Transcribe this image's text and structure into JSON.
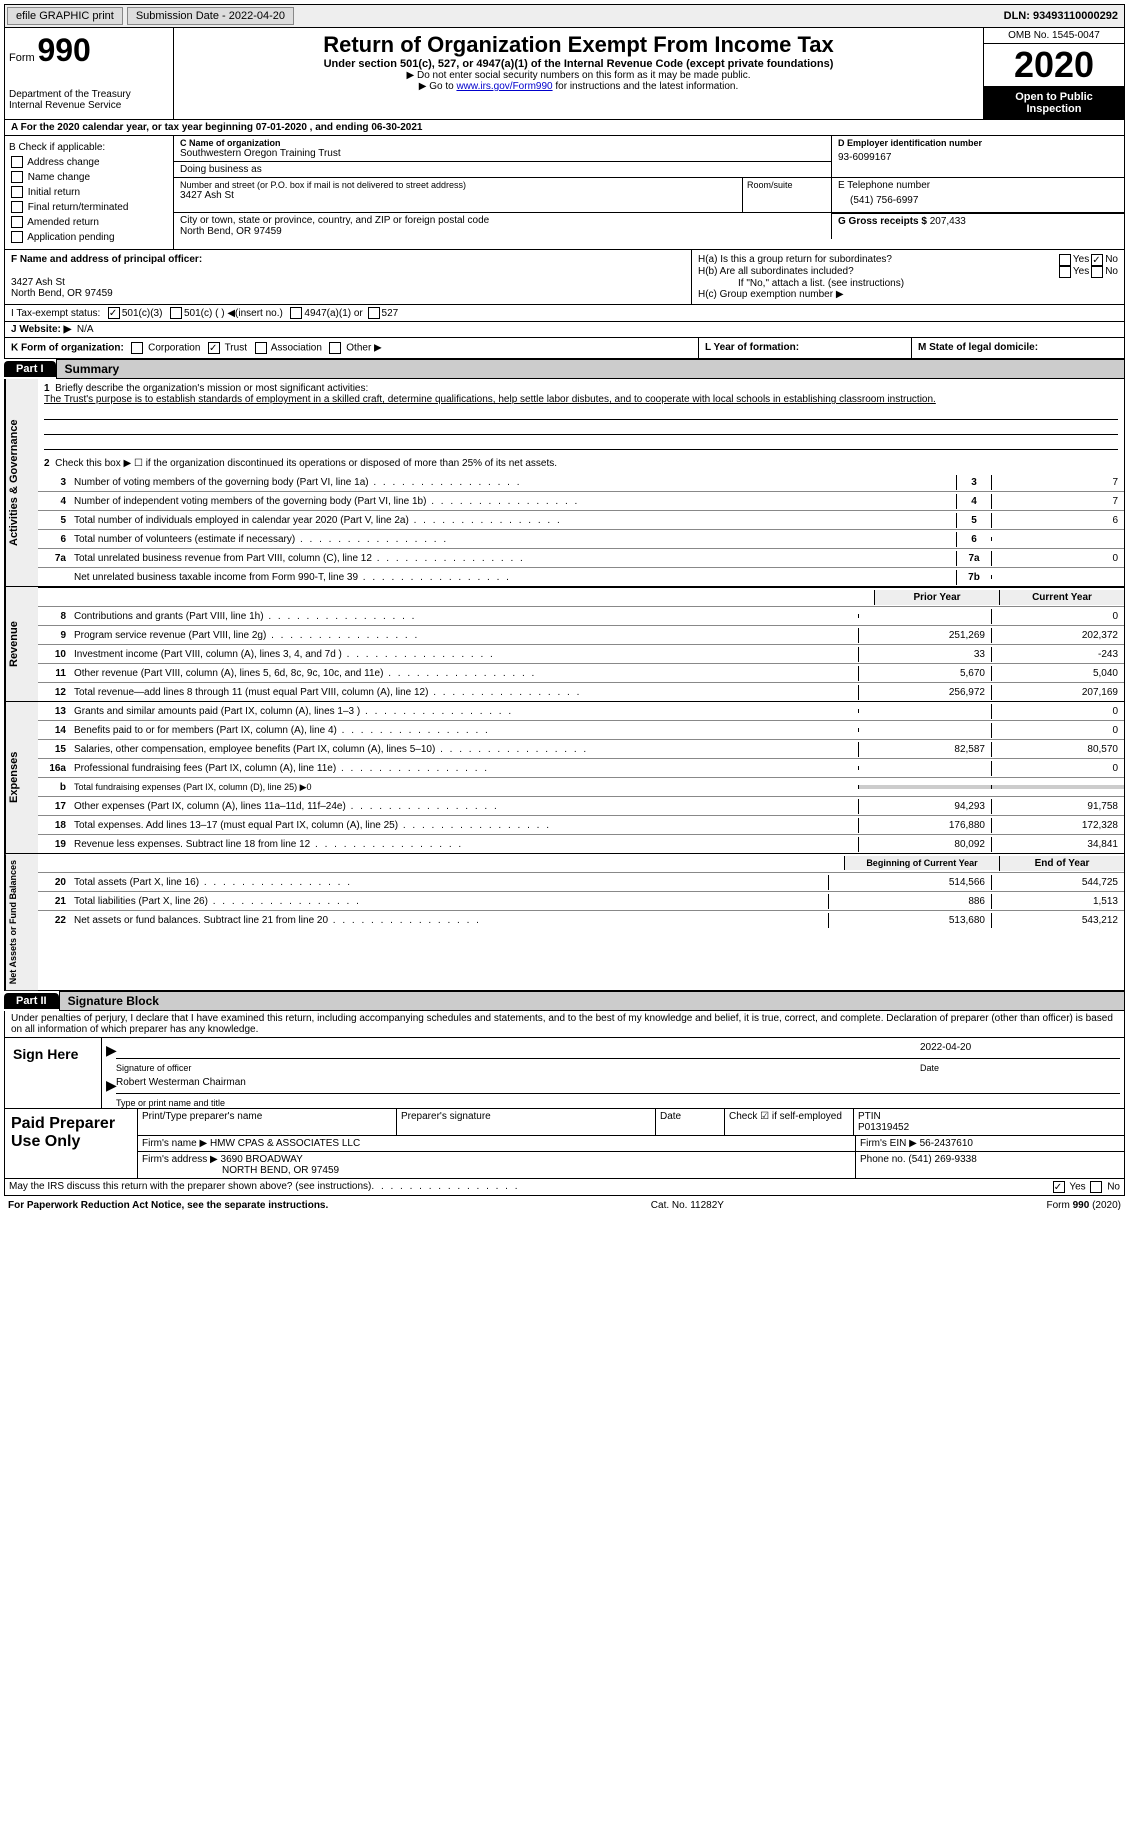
{
  "top_bar": {
    "efile": "efile GRAPHIC print",
    "submission": "Submission Date - 2022-04-20",
    "dln": "DLN: 93493110000292"
  },
  "header": {
    "form_word": "Form",
    "form_num": "990",
    "title": "Return of Organization Exempt From Income Tax",
    "sub": "Under section 501(c), 527, or 4947(a)(1) of the Internal Revenue Code (except private foundations)",
    "note1": "▶ Do not enter social security numbers on this form as it may be made public.",
    "note2_prefix": "▶ Go to ",
    "note2_link": "www.irs.gov/Form990",
    "note2_suffix": " for instructions and the latest information.",
    "dept1": "Department of the Treasury",
    "dept2": "Internal Revenue Service",
    "omb": "OMB No. 1545-0047",
    "year": "2020",
    "inspection": "Open to Public Inspection"
  },
  "row_a": "A For the 2020 calendar year, or tax year beginning 07-01-2020     , and ending 06-30-2021",
  "box_b": {
    "label": "B Check if applicable:",
    "items": [
      "Address change",
      "Name change",
      "Initial return",
      "Final return/terminated",
      "Amended return",
      "Application pending"
    ]
  },
  "box_c": {
    "name_label": "C Name of organization",
    "name": "Southwestern Oregon Training Trust",
    "dba_label": "Doing business as",
    "addr_label": "Number and street (or P.O. box if mail is not delivered to street address)",
    "addr": "3427 Ash St",
    "room_label": "Room/suite",
    "city_label": "City or town, state or province, country, and ZIP or foreign postal code",
    "city": "North Bend, OR  97459"
  },
  "box_d": {
    "ein_label": "D Employer identification number",
    "ein": "93-6099167",
    "phone_label": "E Telephone number",
    "phone": "(541) 756-6997",
    "gross_label": "G Gross receipts $",
    "gross": "207,433"
  },
  "box_f": {
    "label": "F Name and address of principal officer:",
    "addr1": "3427 Ash St",
    "addr2": "North Bend, OR  97459"
  },
  "box_h": {
    "ha": "H(a)  Is this a group return for subordinates?",
    "hb": "H(b)  Are all subordinates included?",
    "hb_note": "If \"No,\" attach a list. (see instructions)",
    "hc": "H(c)  Group exemption number ▶"
  },
  "box_i": {
    "label": "I  Tax-exempt status:",
    "opt1": "501(c)(3)",
    "opt2": "501(c) (   ) ◀(insert no.)",
    "opt3": "4947(a)(1) or",
    "opt4": "527"
  },
  "box_j": {
    "label": "J  Website: ▶",
    "val": "N/A"
  },
  "box_k": "K Form of organization:",
  "box_k_opts": [
    "Corporation",
    "Trust",
    "Association",
    "Other ▶"
  ],
  "box_l": "L Year of formation:",
  "box_m": "M State of legal domicile:",
  "part1": {
    "tab": "Part I",
    "title": "Summary",
    "side_gov": "Activities & Governance",
    "side_rev": "Revenue",
    "side_exp": "Expenses",
    "side_net": "Net Assets or Fund Balances",
    "q1_label": "Briefly describe the organization's mission or most significant activities:",
    "q1_text": "The Trust's purpose is to establish standards of employment in a skilled craft, determine qualifications, help settle labor disbutes, and to cooperate with local schools in establishing classroom instruction.",
    "q2": "Check this box ▶ ☐  if the organization discontinued its operations or disposed of more than 25% of its net assets.",
    "lines_gov": [
      {
        "n": "3",
        "d": "Number of voting members of the governing body (Part VI, line 1a)",
        "b": "3",
        "v": "7"
      },
      {
        "n": "4",
        "d": "Number of independent voting members of the governing body (Part VI, line 1b)",
        "b": "4",
        "v": "7"
      },
      {
        "n": "5",
        "d": "Total number of individuals employed in calendar year 2020 (Part V, line 2a)",
        "b": "5",
        "v": "6"
      },
      {
        "n": "6",
        "d": "Total number of volunteers (estimate if necessary)",
        "b": "6",
        "v": ""
      },
      {
        "n": "7a",
        "d": "Total unrelated business revenue from Part VIII, column (C), line 12",
        "b": "7a",
        "v": "0"
      },
      {
        "n": "",
        "d": "Net unrelated business taxable income from Form 990-T, line 39",
        "b": "7b",
        "v": ""
      }
    ],
    "hdr_prior": "Prior Year",
    "hdr_curr": "Current Year",
    "lines_rev": [
      {
        "n": "8",
        "d": "Contributions and grants (Part VIII, line 1h)",
        "p": "",
        "c": "0"
      },
      {
        "n": "9",
        "d": "Program service revenue (Part VIII, line 2g)",
        "p": "251,269",
        "c": "202,372"
      },
      {
        "n": "10",
        "d": "Investment income (Part VIII, column (A), lines 3, 4, and 7d )",
        "p": "33",
        "c": "-243"
      },
      {
        "n": "11",
        "d": "Other revenue (Part VIII, column (A), lines 5, 6d, 8c, 9c, 10c, and 11e)",
        "p": "5,670",
        "c": "5,040"
      },
      {
        "n": "12",
        "d": "Total revenue—add lines 8 through 11 (must equal Part VIII, column (A), line 12)",
        "p": "256,972",
        "c": "207,169"
      }
    ],
    "lines_exp": [
      {
        "n": "13",
        "d": "Grants and similar amounts paid (Part IX, column (A), lines 1–3 )",
        "p": "",
        "c": "0"
      },
      {
        "n": "14",
        "d": "Benefits paid to or for members (Part IX, column (A), line 4)",
        "p": "",
        "c": "0"
      },
      {
        "n": "15",
        "d": "Salaries, other compensation, employee benefits (Part IX, column (A), lines 5–10)",
        "p": "82,587",
        "c": "80,570"
      },
      {
        "n": "16a",
        "d": "Professional fundraising fees (Part IX, column (A), line 11e)",
        "p": "",
        "c": "0"
      },
      {
        "n": "b",
        "d": "Total fundraising expenses (Part IX, column (D), line 25) ▶0",
        "shaded": true
      },
      {
        "n": "17",
        "d": "Other expenses (Part IX, column (A), lines 11a–11d, 11f–24e)",
        "p": "94,293",
        "c": "91,758"
      },
      {
        "n": "18",
        "d": "Total expenses. Add lines 13–17 (must equal Part IX, column (A), line 25)",
        "p": "176,880",
        "c": "172,328"
      },
      {
        "n": "19",
        "d": "Revenue less expenses. Subtract line 18 from line 12",
        "p": "80,092",
        "c": "34,841"
      }
    ],
    "hdr_begin": "Beginning of Current Year",
    "hdr_end": "End of Year",
    "lines_net": [
      {
        "n": "20",
        "d": "Total assets (Part X, line 16)",
        "p": "514,566",
        "c": "544,725"
      },
      {
        "n": "21",
        "d": "Total liabilities (Part X, line 26)",
        "p": "886",
        "c": "1,513"
      },
      {
        "n": "22",
        "d": "Net assets or fund balances. Subtract line 21 from line 20",
        "p": "513,680",
        "c": "543,212"
      }
    ]
  },
  "part2": {
    "tab": "Part II",
    "title": "Signature Block",
    "penalties": "Under penalties of perjury, I declare that I have examined this return, including accompanying schedules and statements, and to the best of my knowledge and belief, it is true, correct, and complete. Declaration of preparer (other than officer) is based on all information of which preparer has any knowledge.",
    "sign_here": "Sign Here",
    "sig_officer": "Signature of officer",
    "sig_date": "2022-04-20",
    "date_label": "Date",
    "officer_name": "Robert Westerman  Chairman",
    "officer_label": "Type or print name and title",
    "paid_prep": "Paid Preparer Use Only",
    "prep_name_label": "Print/Type preparer's name",
    "prep_sig_label": "Preparer's signature",
    "prep_date_label": "Date",
    "check_label": "Check ☑ if self-employed",
    "ptin_label": "PTIN",
    "ptin": "P01319452",
    "firm_name_label": "Firm's name    ▶",
    "firm_name": "HMW CPAS & ASSOCIATES LLC",
    "firm_ein_label": "Firm's EIN ▶",
    "firm_ein": "56-2437610",
    "firm_addr_label": "Firm's address ▶",
    "firm_addr1": "3690 BROADWAY",
    "firm_addr2": "NORTH BEND, OR  97459",
    "firm_phone_label": "Phone no.",
    "firm_phone": "(541) 269-9338",
    "discuss": "May the IRS discuss this return with the preparer shown above? (see instructions)"
  },
  "footer": {
    "pra": "For Paperwork Reduction Act Notice, see the separate instructions.",
    "cat": "Cat. No. 11282Y",
    "form": "Form 990 (2020)"
  },
  "yes": "Yes",
  "no": "No"
}
